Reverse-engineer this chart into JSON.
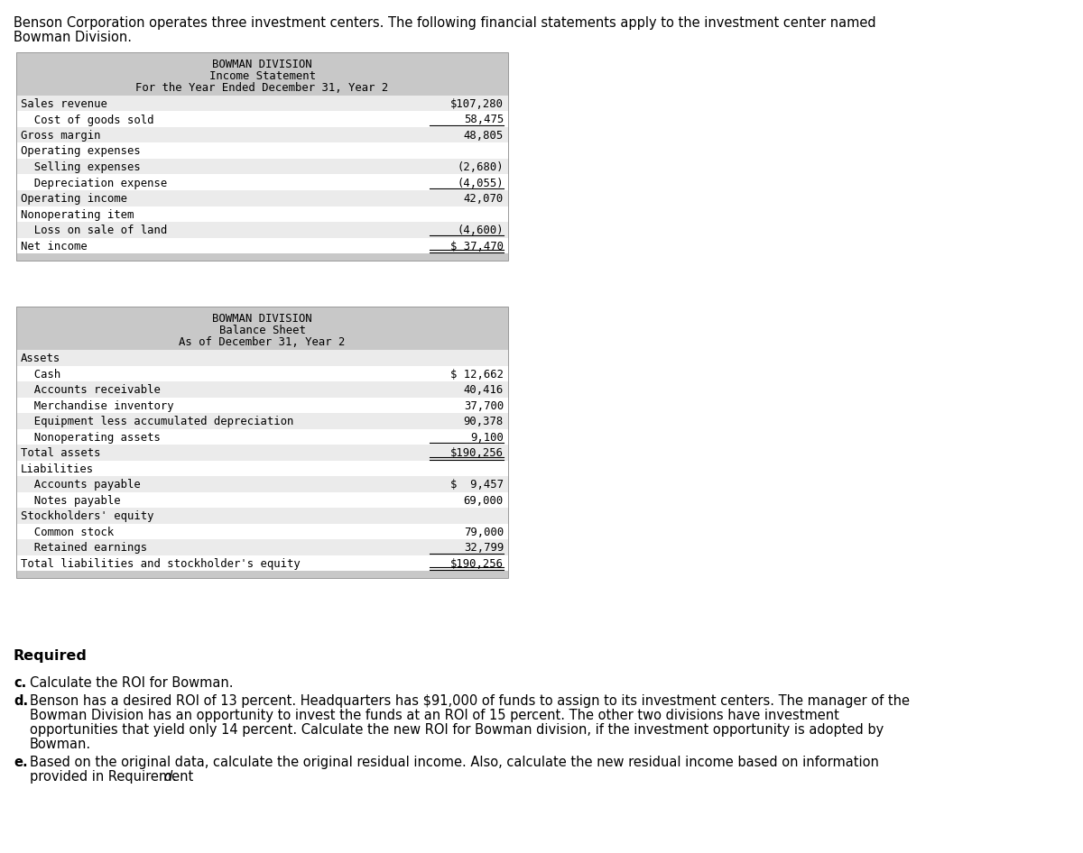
{
  "intro_line1": "Benson Corporation operates three investment centers. The following financial statements apply to the investment center named",
  "intro_line2": "Bowman Division.",
  "income_statement": {
    "header1": "BOWMAN DIVISION",
    "header2": "Income Statement",
    "header3": "For the Year Ended December 31, Year 2",
    "rows": [
      {
        "label": "Sales revenue",
        "value": "$107,280",
        "underline": false,
        "double_underline": false
      },
      {
        "label": "  Cost of goods sold",
        "value": "58,475",
        "underline": true,
        "double_underline": false
      },
      {
        "label": "Gross margin",
        "value": "48,805",
        "underline": false,
        "double_underline": false
      },
      {
        "label": "Operating expenses",
        "value": "",
        "underline": false,
        "double_underline": false
      },
      {
        "label": "  Selling expenses",
        "value": "(2,680)",
        "underline": false,
        "double_underline": false
      },
      {
        "label": "  Depreciation expense",
        "value": "(4,055)",
        "underline": true,
        "double_underline": false
      },
      {
        "label": "Operating income",
        "value": "42,070",
        "underline": false,
        "double_underline": false
      },
      {
        "label": "Nonoperating item",
        "value": "",
        "underline": false,
        "double_underline": false
      },
      {
        "label": "  Loss on sale of land",
        "value": "(4,600)",
        "underline": true,
        "double_underline": false
      },
      {
        "label": "Net income",
        "value": "$ 37,470",
        "underline": false,
        "double_underline": true
      }
    ]
  },
  "balance_sheet": {
    "header1": "BOWMAN DIVISION",
    "header2": "Balance Sheet",
    "header3": "As of December 31, Year 2",
    "rows": [
      {
        "label": "Assets",
        "value": "",
        "underline": false,
        "double_underline": false
      },
      {
        "label": "  Cash",
        "value": "$ 12,662",
        "underline": false,
        "double_underline": false
      },
      {
        "label": "  Accounts receivable",
        "value": "40,416",
        "underline": false,
        "double_underline": false
      },
      {
        "label": "  Merchandise inventory",
        "value": "37,700",
        "underline": false,
        "double_underline": false
      },
      {
        "label": "  Equipment less accumulated depreciation",
        "value": "90,378",
        "underline": false,
        "double_underline": false
      },
      {
        "label": "  Nonoperating assets",
        "value": "9,100",
        "underline": true,
        "double_underline": false
      },
      {
        "label": "Total assets",
        "value": "$190,256",
        "underline": false,
        "double_underline": true
      },
      {
        "label": "Liabilities",
        "value": "",
        "underline": false,
        "double_underline": false
      },
      {
        "label": "  Accounts payable",
        "value": "$  9,457",
        "underline": false,
        "double_underline": false
      },
      {
        "label": "  Notes payable",
        "value": "69,000",
        "underline": false,
        "double_underline": false
      },
      {
        "label": "Stockholders' equity",
        "value": "",
        "underline": false,
        "double_underline": false
      },
      {
        "label": "  Common stock",
        "value": "79,000",
        "underline": false,
        "double_underline": false
      },
      {
        "label": "  Retained earnings",
        "value": "32,799",
        "underline": true,
        "double_underline": false
      },
      {
        "label": "Total liabilities and stockholder's equity",
        "value": "$190,256",
        "underline": false,
        "double_underline": true
      }
    ]
  },
  "required_text": "Required",
  "req_c": "Calculate the ROI for Bowman.",
  "req_d_line1": "Benson has a desired ROI of 13 percent. Headquarters has $91,000 of funds to assign to its investment centers. The manager of the",
  "req_d_line2": "Bowman Division has an opportunity to invest the funds at an ROI of 15 percent. The other two divisions have investment",
  "req_d_line3": "opportunities that yield only 14 percent. Calculate the new ROI for Bowman division, if the investment opportunity is adopted by",
  "req_d_line4": "Bowman.",
  "req_e_line1": "Based on the original data, calculate the original residual income. Also, calculate the new residual income based on information",
  "req_e_line2": "provided in Requirement ",
  "req_e_italic": "d",
  "req_e_period": ".",
  "table_header_bg": "#c8c8c8",
  "table_footer_bg": "#c8c8c8",
  "row_bg_even": "#ebebeb",
  "row_bg_odd": "#ffffff",
  "font_mono": "DejaVu Sans Mono",
  "font_sans": "DejaVu Sans",
  "page_bg": "#ffffff",
  "text_color": "#000000",
  "fs_intro": 10.5,
  "fs_mono": 8.8,
  "fs_required": 11.5,
  "fs_req_items": 10.5
}
